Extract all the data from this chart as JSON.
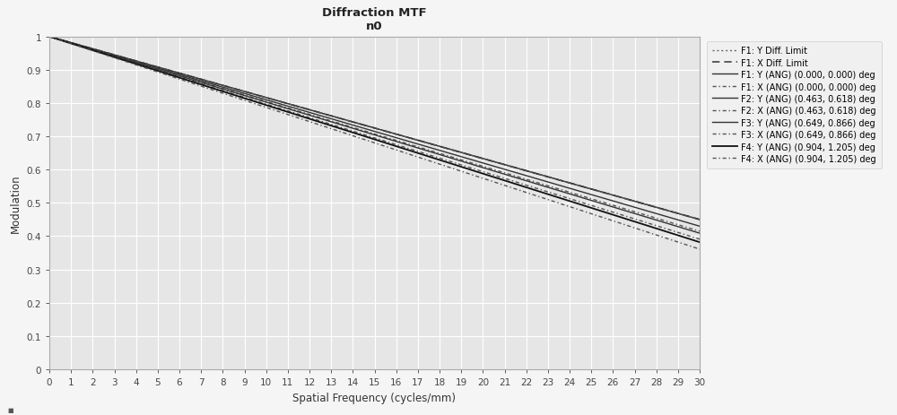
{
  "title": "Diffraction MTF",
  "subtitle": "n0",
  "xlabel": "Spatial Frequency (cycles/mm)",
  "ylabel": "Modulation",
  "xlim": [
    0,
    30
  ],
  "ylim": [
    0,
    1.0
  ],
  "xticks": [
    0,
    1,
    2,
    3,
    4,
    5,
    6,
    7,
    8,
    9,
    10,
    11,
    12,
    13,
    14,
    15,
    16,
    17,
    18,
    19,
    20,
    21,
    22,
    23,
    24,
    25,
    26,
    27,
    28,
    29,
    30
  ],
  "yticks": [
    0,
    0.1,
    0.2,
    0.3,
    0.4,
    0.5,
    0.6,
    0.7,
    0.8,
    0.9,
    1
  ],
  "plot_bg": "#e6e6e6",
  "fig_bg": "#f5f5f5",
  "grid_color": "#ffffff",
  "lines": [
    {
      "label": "F1: Y Diff. Limit",
      "slope": -0.01833,
      "color": "#666666",
      "linestyle": "dotted",
      "linewidth": 1.0
    },
    {
      "label": "F1: X Diff. Limit",
      "slope": -0.01833,
      "color": "#444444",
      "linestyle": "dashed",
      "linewidth": 1.2
    },
    {
      "label": "F1: Y (ANG) (0.000, 0.000) deg",
      "slope": -0.01833,
      "color": "#333333",
      "linestyle": "solid",
      "linewidth": 1.0
    },
    {
      "label": "F1: X (ANG) (0.000, 0.000) deg",
      "slope": -0.01833,
      "color": "#555555",
      "linestyle": "dotdash",
      "linewidth": 1.0
    },
    {
      "label": "F2: Y (ANG) (0.463, 0.618) deg",
      "slope": -0.019,
      "color": "#333333",
      "linestyle": "solid",
      "linewidth": 1.0
    },
    {
      "label": "F2: X (ANG) (0.463, 0.618) deg",
      "slope": -0.0195,
      "color": "#555555",
      "linestyle": "dotdash",
      "linewidth": 1.0
    },
    {
      "label": "F3: Y (ANG) (0.649, 0.866) deg",
      "slope": -0.0197,
      "color": "#333333",
      "linestyle": "solid",
      "linewidth": 1.0
    },
    {
      "label": "F3: X (ANG) (0.649, 0.866) deg",
      "slope": -0.0203,
      "color": "#555555",
      "linestyle": "dotdash",
      "linewidth": 1.0
    },
    {
      "label": "F4: Y (ANG) (0.904, 1.205) deg",
      "slope": -0.0206,
      "color": "#111111",
      "linestyle": "solid",
      "linewidth": 1.3
    },
    {
      "label": "F4: X (ANG) (0.904, 1.205) deg",
      "slope": -0.0213,
      "color": "#555555",
      "linestyle": "dotdash",
      "linewidth": 1.0
    }
  ],
  "legend_fontsize": 7.0,
  "axis_fontsize": 8.5,
  "tick_fontsize": 7.5,
  "title_fontsize": 9.5
}
